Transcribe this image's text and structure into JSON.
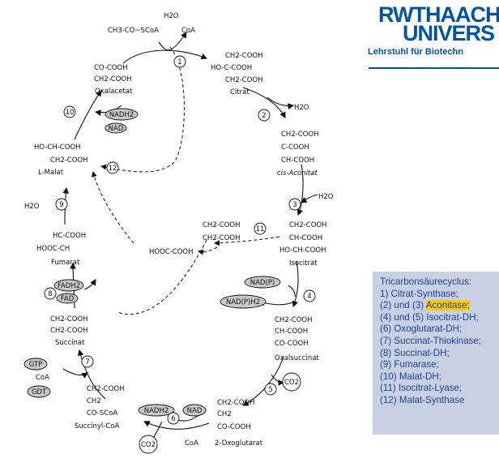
{
  "logo": {
    "line1": "RWTHAACH",
    "line2": "UNIVERS",
    "line3": "Lehrstuhl für Biotechn"
  },
  "compounds": {
    "acetylcoa": [
      "CH3-CO~SCoA"
    ],
    "oxalacetat": [
      "CO-COOH",
      "CH2-COOH",
      "Oxalacetat"
    ],
    "citrat": [
      "CH2-COOH",
      "HO-C-COOH",
      "CH2-COOH",
      "Citrat"
    ],
    "cisaconitat": [
      "CH2-COOH",
      "C-COOH",
      "CH-COOH",
      "cis-Aconitat"
    ],
    "isocitrat": [
      "CH2-COOH",
      "CH-COOH",
      "HO-CH-COOH",
      "Isocitrat"
    ],
    "oxalsuccinat": [
      "CH2-COOH",
      "CH-COOH",
      "CO-COOH",
      "Oxalsuccinat"
    ],
    "oxoglutarat": [
      "CH2-COOH",
      "CH2",
      "CO-COOH",
      "2-Oxoglutarat"
    ],
    "succinylcoa": [
      "CH2-COOH",
      "CH2",
      "CO-SCoA",
      "Succinyl-CoA"
    ],
    "succinat": [
      "CH2-COOH",
      "CH2-COOH",
      "Succinat"
    ],
    "fumarat": [
      "HC-COOH",
      "HOOC-CH",
      "Fumarat"
    ],
    "malat": [
      "HO-CH-COOH",
      "CH2-COOH",
      "L-Malat"
    ],
    "glyoxylat": [
      "HOOC-COOH"
    ],
    "succinat_lyase": [
      "CH2-COOH",
      "CH2-COOH"
    ]
  },
  "cofactors": {
    "h2o": "H2O",
    "coa": "CoA",
    "co2": "CO2",
    "nadh2": "NADH2",
    "nad": "NAD",
    "nadp": "NAD(P)",
    "nadph2": "NAD(P)H2",
    "fadh2": "FADH2",
    "fad": "FAD",
    "gtp": "GTP",
    "gdt": "GDT"
  },
  "steps": [
    "1",
    "2",
    "3",
    "4",
    "5",
    "6",
    "7",
    "8",
    "9",
    "10",
    "11",
    "12"
  ],
  "legend": {
    "title": "Tricarbonsäurecyclus:",
    "items": [
      "1) Citrat-Synthase;",
      "(2) und (3) ",
      "Aconitase;",
      "(4) und (5) Isocitrat-DH;",
      "(6) Oxoglutarat-DH;",
      "(7) Succinat-Thiokinase;",
      "(8) Succinat-DH;",
      "(9) Fumarase;",
      "(10) Malat-DH;",
      "(11) Isocitrat-Lyase;",
      "(12) Malat-Synthase"
    ]
  },
  "colors": {
    "logo": "#00549f",
    "legend_bg": "#c8d1e4",
    "legend_text": "#1f3f8c",
    "highlight": "#ffcc00",
    "oval_fill": "#c8c8c8"
  }
}
